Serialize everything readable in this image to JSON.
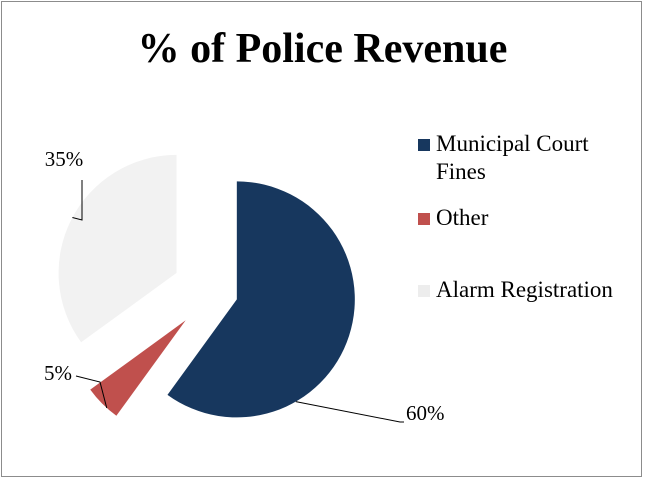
{
  "chart_data": {
    "type": "pie",
    "title": "% of Police Revenue",
    "categories": [
      "Municipal Court Fines",
      "Other",
      "Alarm Registration"
    ],
    "values": [
      60,
      5,
      35
    ],
    "data_labels": [
      "60%",
      "5%",
      "35%"
    ],
    "colors": [
      "#17375e",
      "#c0504d",
      "#f2f2f2"
    ],
    "exploded": true,
    "legend_position": "right",
    "grid": false
  }
}
